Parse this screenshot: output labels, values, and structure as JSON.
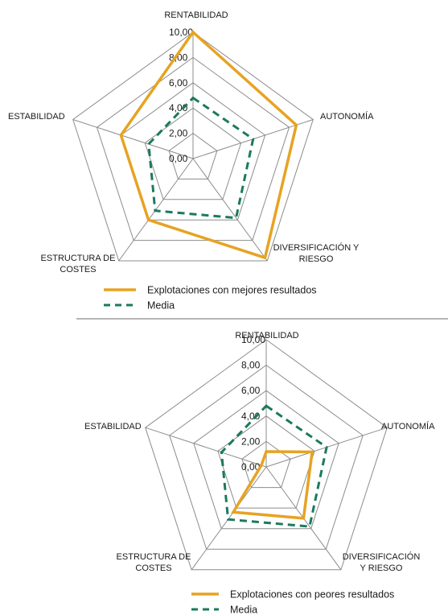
{
  "colors": {
    "grid": "#8c8c8c",
    "best_series": "#e6a323",
    "worst_series": "#e6a323",
    "mean_series": "#1a7a5e",
    "text": "#1a1a1a"
  },
  "chart_data": [
    {
      "type": "radar",
      "categories": [
        "RENTABILIDAD",
        "AUTONOMÍA",
        "DIVERSIFICACIÓN Y RIESGO",
        "ESTRUCTURA DE COSTES",
        "ESTABILIDAD"
      ],
      "category_lines": [
        [
          "RENTABILIDAD"
        ],
        [
          "AUTONOMÍA"
        ],
        [
          "DIVERSIFICACIÓN Y",
          "RIESGO"
        ],
        [
          "ESTRUCTURA DE",
          "COSTES"
        ],
        [
          "ESTABILIDAD"
        ]
      ],
      "r_ticks": [
        "0,00",
        "2,00",
        "4,00",
        "6,00",
        "8,00",
        "10,00"
      ],
      "rlim": [
        0,
        10
      ],
      "series": [
        {
          "name": "Explotaciones con mejores resultados",
          "style": "solid",
          "values": [
            10.0,
            8.6,
            9.7,
            6.0,
            6.0
          ]
        },
        {
          "name": "Media",
          "style": "dashed",
          "values": [
            4.8,
            5.0,
            5.8,
            5.1,
            3.7
          ]
        }
      ]
    },
    {
      "type": "radar",
      "categories": [
        "RENTABILIDAD",
        "AUTONOMÍA",
        "DIVERSIFICACIÓN Y RIESGO",
        "ESTRUCTURA DE COSTES",
        "ESTABILIDAD"
      ],
      "category_lines": [
        [
          "RENTABILIDAD"
        ],
        [
          "AUTONOMÍA"
        ],
        [
          "DIVERSIFICACIÓN",
          "Y RIESGO"
        ],
        [
          "ESTRUCTURA DE",
          "COSTES"
        ],
        [
          "ESTABILIDAD"
        ]
      ],
      "r_ticks": [
        "0,00",
        "2,00",
        "4,00",
        "6,00",
        "8,00",
        "10,00"
      ],
      "rlim": [
        0,
        10
      ],
      "series": [
        {
          "name": "Explotaciones con peores resultados",
          "style": "solid",
          "values": [
            1.2,
            3.8,
            5.0,
            4.4,
            0.4
          ]
        },
        {
          "name": "Media",
          "style": "dashed",
          "values": [
            4.8,
            5.0,
            5.8,
            5.1,
            3.7
          ]
        }
      ]
    }
  ]
}
